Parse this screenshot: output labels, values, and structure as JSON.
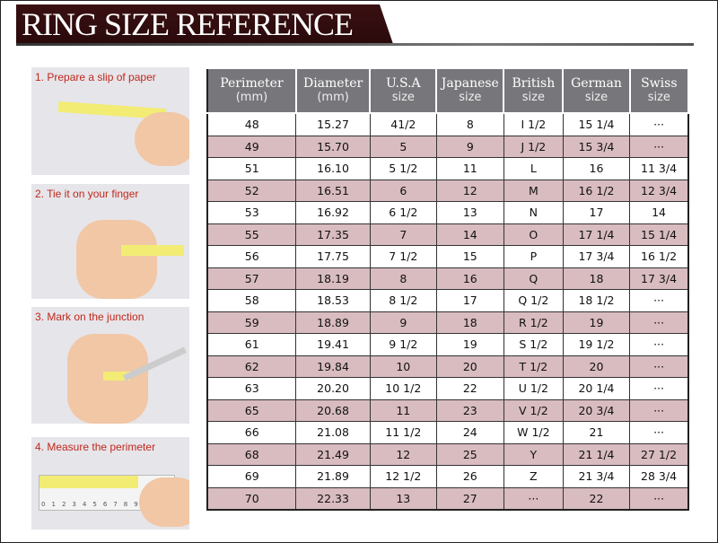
{
  "title": "RING SIZE REFERENCE",
  "steps": [
    "1. Prepare a slip of paper",
    "2. Tie it on your finger",
    "3. Mark on the junction",
    "4. Measure the perimeter"
  ],
  "ruler_ticks": [
    "0",
    "1",
    "2",
    "3",
    "4",
    "5",
    "6",
    "7",
    "8",
    "9"
  ],
  "columns": [
    {
      "name": "Perimeter",
      "unit": "(mm)"
    },
    {
      "name": "Diameter",
      "unit": "(mm)"
    },
    {
      "name": "U.S.A",
      "unit": "size"
    },
    {
      "name": "Japanese",
      "unit": "size"
    },
    {
      "name": "British",
      "unit": "size"
    },
    {
      "name": "German",
      "unit": "size"
    },
    {
      "name": "Swiss",
      "unit": "size"
    }
  ],
  "rows": [
    [
      "48",
      "15.27",
      "41/2",
      "8",
      "I 1/2",
      "15 1/4",
      "···"
    ],
    [
      "49",
      "15.70",
      "5",
      "9",
      "J 1/2",
      "15 3/4",
      "···"
    ],
    [
      "51",
      "16.10",
      "5 1/2",
      "11",
      "L",
      "16",
      "11 3/4"
    ],
    [
      "52",
      "16.51",
      "6",
      "12",
      "M",
      "16 1/2",
      "12 3/4"
    ],
    [
      "53",
      "16.92",
      "6 1/2",
      "13",
      "N",
      "17",
      "14"
    ],
    [
      "55",
      "17.35",
      "7",
      "14",
      "O",
      "17 1/4",
      "15 1/4"
    ],
    [
      "56",
      "17.75",
      "7 1/2",
      "15",
      "P",
      "17 3/4",
      "16 1/2"
    ],
    [
      "57",
      "18.19",
      "8",
      "16",
      "Q",
      "18",
      "17 3/4"
    ],
    [
      "58",
      "18.53",
      "8 1/2",
      "17",
      "Q  1/2",
      "18 1/2",
      "···"
    ],
    [
      "59",
      "18.89",
      "9",
      "18",
      "R 1/2",
      "19",
      "···"
    ],
    [
      "61",
      "19.41",
      "9 1/2",
      "19",
      "S 1/2",
      "19 1/2",
      "···"
    ],
    [
      "62",
      "19.84",
      "10",
      "20",
      "T 1/2",
      "20",
      "···"
    ],
    [
      "63",
      "20.20",
      "10 1/2",
      "22",
      "U 1/2",
      "20 1/4",
      "···"
    ],
    [
      "65",
      "20.68",
      "11",
      "23",
      "V 1/2",
      "20 3/4",
      "···"
    ],
    [
      "66",
      "21.08",
      "11 1/2",
      "24",
      "W 1/2",
      "21",
      "···"
    ],
    [
      "68",
      "21.49",
      "12",
      "25",
      "Y",
      "21 1/4",
      "27 1/2"
    ],
    [
      "69",
      "21.89",
      "12 1/2",
      "26",
      "Z",
      "21 3/4",
      "28 3/4"
    ],
    [
      "70",
      "22.33",
      "13",
      "27",
      "···",
      "22",
      "···"
    ]
  ],
  "colors": {
    "banner": "#2a0a0c",
    "header_bg": "#77777b",
    "alt_row": "#d8bcc0",
    "step_label": "#c0281c"
  }
}
